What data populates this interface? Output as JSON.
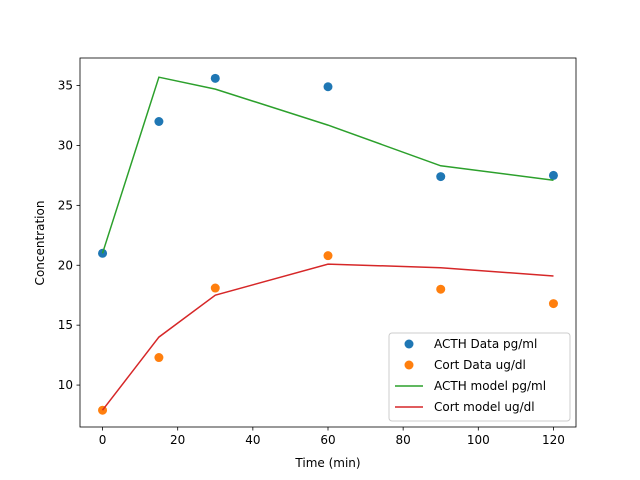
{
  "chart_data": {
    "type": "line",
    "title": "",
    "xlabel": "Time (min)",
    "ylabel": "Concentration",
    "xlim": [
      -6,
      126
    ],
    "ylim": [
      6.5,
      37.3
    ],
    "xticks": [
      0,
      20,
      40,
      60,
      80,
      100,
      120
    ],
    "yticks": [
      10,
      15,
      20,
      25,
      30,
      35
    ],
    "grid": false,
    "legend_position": "lower-right",
    "series": [
      {
        "name": "ACTH Data pg/ml",
        "kind": "scatter",
        "color": "#1f77b4",
        "x": [
          0,
          15,
          30,
          60,
          90,
          120
        ],
        "y": [
          21.0,
          32.0,
          35.6,
          34.9,
          27.4,
          27.5
        ]
      },
      {
        "name": "Cort Data ug/dl",
        "kind": "scatter",
        "color": "#ff7f0e",
        "x": [
          0,
          15,
          30,
          60,
          90,
          120
        ],
        "y": [
          7.9,
          12.3,
          18.1,
          20.8,
          18.0,
          16.8
        ]
      },
      {
        "name": "ACTH model pg/ml",
        "kind": "line",
        "color": "#2ca02c",
        "x": [
          0,
          15,
          30,
          60,
          90,
          120
        ],
        "y": [
          21.0,
          35.7,
          34.7,
          31.7,
          28.3,
          27.1
        ]
      },
      {
        "name": "Cort model ug/dl",
        "kind": "line",
        "color": "#d62728",
        "x": [
          0,
          15,
          30,
          60,
          90,
          120
        ],
        "y": [
          7.9,
          14.0,
          17.5,
          20.1,
          19.8,
          19.1
        ]
      }
    ]
  }
}
